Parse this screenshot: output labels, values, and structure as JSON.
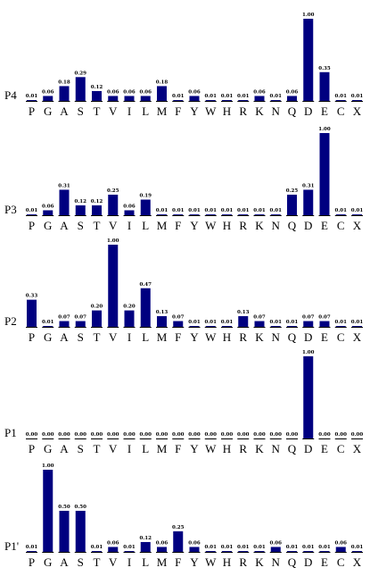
{
  "chart_data": [
    {
      "type": "bar",
      "title": "P4",
      "categories": [
        "P",
        "G",
        "A",
        "S",
        "T",
        "V",
        "I",
        "L",
        "M",
        "F",
        "Y",
        "W",
        "H",
        "R",
        "K",
        "N",
        "Q",
        "D",
        "E",
        "C",
        "X"
      ],
      "values": [
        0.01,
        0.06,
        0.18,
        0.29,
        0.12,
        0.06,
        0.06,
        0.06,
        0.18,
        0.01,
        0.06,
        0.01,
        0.01,
        0.01,
        0.06,
        0.01,
        0.06,
        1.0,
        0.35,
        0.01,
        0.01
      ],
      "value_labels": [
        "0.01",
        "0.06",
        "0.18",
        "0.29",
        "0.12",
        "0.06",
        "0.06",
        "0.06",
        "0.18",
        "0.01",
        "0.06",
        "0.01",
        "0.01",
        "0.01",
        "0.06",
        "0.01",
        "0.06",
        "1.00",
        "0.35",
        "0.01",
        "0.01"
      ],
      "color": "#000080",
      "ylim": [
        0,
        1
      ],
      "grid": false
    },
    {
      "type": "bar",
      "title": "P3",
      "categories": [
        "P",
        "G",
        "A",
        "S",
        "T",
        "V",
        "I",
        "L",
        "M",
        "F",
        "Y",
        "W",
        "H",
        "R",
        "K",
        "N",
        "Q",
        "D",
        "E",
        "C",
        "X"
      ],
      "values": [
        0.01,
        0.06,
        0.31,
        0.12,
        0.12,
        0.25,
        0.06,
        0.19,
        0.01,
        0.01,
        0.01,
        0.01,
        0.01,
        0.01,
        0.01,
        0.01,
        0.25,
        0.31,
        1.0,
        0.01,
        0.01
      ],
      "value_labels": [
        "0.01",
        "0.06",
        "0.31",
        "0.12",
        "0.12",
        "0.25",
        "0.06",
        "0.19",
        "0.01",
        "0.01",
        "0.01",
        "0.01",
        "0.01",
        "0.01",
        "0.01",
        "0.01",
        "0.25",
        "0.31",
        "1.00",
        "0.01",
        "0.01"
      ],
      "color": "#000080",
      "ylim": [
        0,
        1
      ],
      "grid": false
    },
    {
      "type": "bar",
      "title": "P2",
      "categories": [
        "P",
        "G",
        "A",
        "S",
        "T",
        "V",
        "I",
        "L",
        "M",
        "F",
        "Y",
        "W",
        "H",
        "R",
        "K",
        "N",
        "Q",
        "D",
        "E",
        "C",
        "X"
      ],
      "values": [
        0.33,
        0.01,
        0.07,
        0.07,
        0.2,
        1.0,
        0.2,
        0.47,
        0.13,
        0.07,
        0.01,
        0.01,
        0.01,
        0.13,
        0.07,
        0.01,
        0.01,
        0.07,
        0.07,
        0.01,
        0.01
      ],
      "value_labels": [
        "0.33",
        "0.01",
        "0.07",
        "0.07",
        "0.20",
        "1.00",
        "0.20",
        "0.47",
        "0.13",
        "0.07",
        "0.01",
        "0.01",
        "0.01",
        "0.13",
        "0.07",
        "0.01",
        "0.01",
        "0.07",
        "0.07",
        "0.01",
        "0.01"
      ],
      "color": "#000080",
      "ylim": [
        0,
        1
      ],
      "grid": false
    },
    {
      "type": "bar",
      "title": "P1",
      "categories": [
        "P",
        "G",
        "A",
        "S",
        "T",
        "V",
        "I",
        "L",
        "M",
        "F",
        "Y",
        "W",
        "H",
        "R",
        "K",
        "N",
        "Q",
        "D",
        "E",
        "C",
        "X"
      ],
      "values": [
        0,
        0,
        0,
        0,
        0,
        0,
        0,
        0,
        0,
        0,
        0,
        0,
        0,
        0,
        0,
        0,
        0,
        1.0,
        0,
        0,
        0
      ],
      "value_labels": [
        "0.00",
        "0.00",
        "0.00",
        "0.00",
        "0.00",
        "0.00",
        "0.00",
        "0.00",
        "0.00",
        "0.00",
        "0.00",
        "0.00",
        "0.00",
        "0.00",
        "0.00",
        "0.00",
        "0.00",
        "1.00",
        "0.00",
        "0.00",
        "0.00"
      ],
      "color": "#000080",
      "ylim": [
        0,
        1
      ],
      "grid": false
    },
    {
      "type": "bar",
      "title": "P1'",
      "categories": [
        "P",
        "G",
        "A",
        "S",
        "T",
        "V",
        "I",
        "L",
        "M",
        "F",
        "Y",
        "W",
        "H",
        "R",
        "K",
        "N",
        "Q",
        "D",
        "E",
        "C",
        "X"
      ],
      "values": [
        0.01,
        1.0,
        0.5,
        0.5,
        0.01,
        0.06,
        0.01,
        0.12,
        0.06,
        0.25,
        0.06,
        0.01,
        0.01,
        0.01,
        0.01,
        0.06,
        0.01,
        0.01,
        0.01,
        0.06,
        0.01
      ],
      "value_labels": [
        "0.01",
        "1.00",
        "0.50",
        "0.50",
        "0.01",
        "0.06",
        "0.01",
        "0.12",
        "0.06",
        "0.25",
        "0.06",
        "0.01",
        "0.01",
        "0.01",
        "0.01",
        "0.06",
        "0.01",
        "0.01",
        "0.01",
        "0.06",
        "0.01"
      ],
      "color": "#000080",
      "ylim": [
        0,
        1
      ],
      "grid": false
    }
  ]
}
